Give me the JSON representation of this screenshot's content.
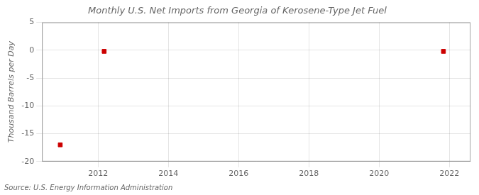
{
  "chart_data": {
    "type": "scatter",
    "title": "Monthly U.S. Net Imports from Georgia of Kerosene-Type Jet Fuel",
    "ylabel": "Thousand Barrels per Day",
    "annotation": "Source: U.S. Energy Information Administration",
    "x": [
      2010.92,
      2012.17,
      2021.83
    ],
    "values": [
      -17.0,
      -0.2,
      -0.2
    ],
    "color": "#cc0000",
    "marker": "square",
    "xlim": [
      2010.4,
      2022.6
    ],
    "xticks": [
      2012,
      2014,
      2016,
      2018,
      2020,
      2022
    ],
    "ylim": [
      -20,
      5
    ],
    "yticks": [
      -20,
      -15,
      -10,
      -5,
      0,
      5
    ],
    "grid": true
  }
}
